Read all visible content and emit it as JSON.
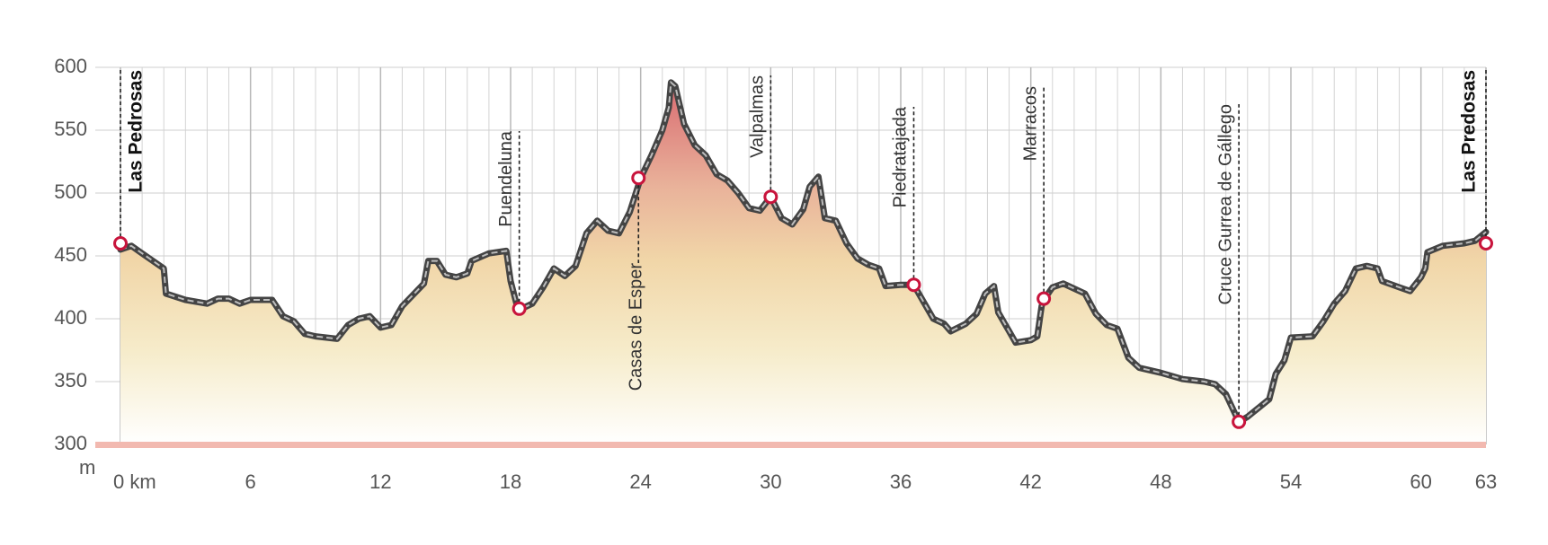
{
  "chart_data": {
    "type": "area",
    "y_label": "m",
    "xlim": [
      0,
      63
    ],
    "ylim": [
      300,
      600
    ],
    "xticks": [
      {
        "value": 0,
        "label": "0 km"
      },
      6,
      12,
      18,
      24,
      30,
      36,
      42,
      48,
      54,
      60,
      63
    ],
    "yticks": [
      300,
      350,
      400,
      450,
      500,
      550,
      600
    ],
    "xgrid_step": 1,
    "grid": true,
    "x": [
      0,
      0.5,
      1,
      2,
      2.1,
      3,
      4,
      4.5,
      5,
      5.5,
      6,
      7,
      7.5,
      8,
      8.5,
      9,
      10,
      10.5,
      11,
      11.5,
      12,
      12.5,
      13,
      14,
      14.2,
      14.6,
      15,
      15.5,
      16,
      16.2,
      17,
      17.8,
      18,
      18.3,
      18.5,
      19,
      19.5,
      20,
      20.5,
      21,
      21.5,
      22,
      22.5,
      23,
      23.5,
      24,
      24.5,
      25,
      25.3,
      25.4,
      25.6,
      26,
      26.5,
      27,
      27.5,
      28,
      28.5,
      29,
      29.5,
      30,
      30.5,
      31,
      31.5,
      31.8,
      32.2,
      32.5,
      33,
      33.5,
      34,
      34.5,
      35,
      35.3,
      36,
      36.6,
      37,
      37.5,
      38,
      38.3,
      39,
      39.5,
      39.9,
      40.3,
      40.5,
      41,
      41.3,
      42,
      42.3,
      42.5,
      42.6,
      43,
      43.5,
      44,
      44.5,
      45,
      45.5,
      46,
      46.5,
      47,
      48,
      49,
      50,
      50.5,
      51,
      51.6,
      52,
      53,
      53.3,
      53.7,
      54,
      55,
      55.5,
      56,
      56.5,
      57,
      57.5,
      58,
      58.2,
      59,
      59.5,
      60,
      60.2,
      60.3,
      61,
      62,
      62.5,
      63
    ],
    "values": [
      455,
      458,
      452,
      440,
      420,
      415,
      412,
      416,
      416,
      412,
      415,
      415,
      402,
      398,
      388,
      386,
      384,
      395,
      400,
      402,
      393,
      395,
      410,
      428,
      446,
      446,
      435,
      433,
      436,
      446,
      452,
      454,
      430,
      410,
      408,
      412,
      425,
      440,
      434,
      442,
      468,
      478,
      470,
      468,
      485,
      512,
      530,
      550,
      568,
      588,
      585,
      555,
      538,
      530,
      515,
      510,
      500,
      488,
      486,
      497,
      480,
      475,
      487,
      505,
      513,
      480,
      478,
      460,
      448,
      443,
      440,
      426,
      427,
      427,
      415,
      400,
      396,
      390,
      396,
      404,
      420,
      426,
      405,
      390,
      381,
      383,
      386,
      410,
      415,
      425,
      428,
      424,
      420,
      404,
      395,
      392,
      369,
      361,
      357,
      352,
      350,
      348,
      340,
      318,
      322,
      336,
      356,
      367,
      385,
      386,
      398,
      412,
      422,
      440,
      442,
      440,
      430,
      425,
      422,
      433,
      440,
      453,
      458,
      460,
      462,
      469
    ],
    "color": "#444444",
    "waypoints": [
      {
        "name": "Las Pedrosas",
        "km": 0,
        "elevation": 460
      },
      {
        "name": "Puendeluna",
        "km": 18.4,
        "elevation": 408
      },
      {
        "name": "Casas de Esper",
        "km": 23.9,
        "elevation": 512
      },
      {
        "name": "Valpalmas",
        "km": 30,
        "elevation": 497
      },
      {
        "name": "Piedratajada",
        "km": 36.6,
        "elevation": 427
      },
      {
        "name": "Marracos",
        "km": 42.6,
        "elevation": 416
      },
      {
        "name": "Cruce Gurrea de Gállego",
        "km": 51.6,
        "elevation": 318
      },
      {
        "name": "Las Predosas",
        "km": 63,
        "elevation": 460
      }
    ]
  }
}
